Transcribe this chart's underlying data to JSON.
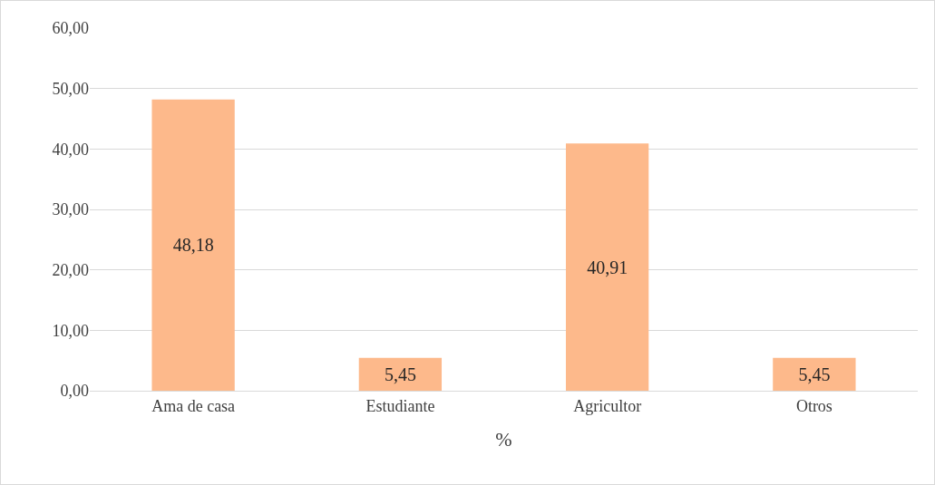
{
  "chart_data": {
    "type": "bar",
    "categories": [
      "Ama de casa",
      "Estudiante",
      "Agricultor",
      "Otros"
    ],
    "values": [
      48.18,
      5.45,
      40.91,
      5.45
    ],
    "value_labels": [
      "48,18",
      "5,45",
      "40,91",
      "5,45"
    ],
    "color": "#fdb98b",
    "xlabel": "%",
    "ylim": [
      0,
      60
    ],
    "yticks": [
      {
        "value": 0,
        "label": "0,00"
      },
      {
        "value": 10,
        "label": "10,00"
      },
      {
        "value": 20,
        "label": "20,00"
      },
      {
        "value": 30,
        "label": "30,00"
      },
      {
        "value": 40,
        "label": "40,00"
      },
      {
        "value": 50,
        "label": "50,00"
      },
      {
        "value": 60,
        "label": "60,00"
      }
    ],
    "grid": "y"
  }
}
